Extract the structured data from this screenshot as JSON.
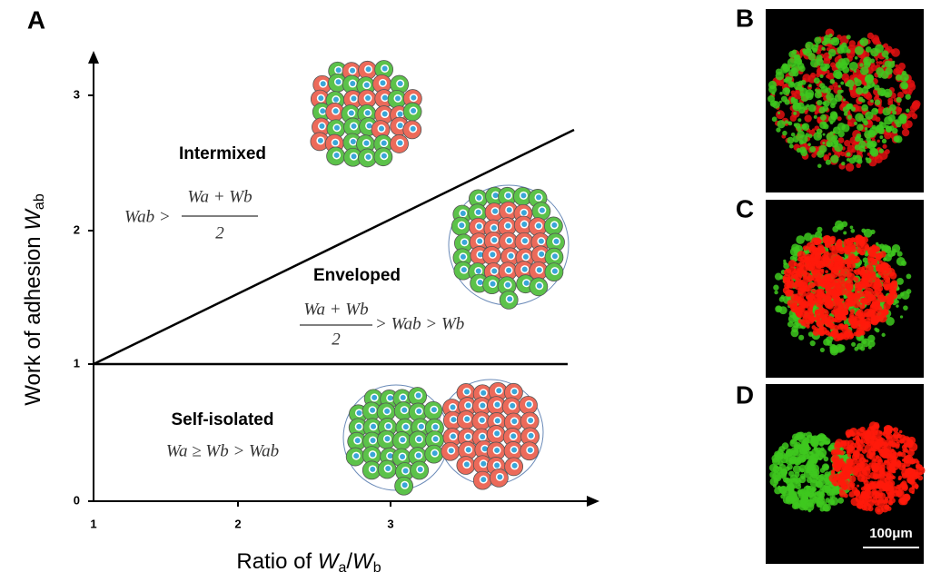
{
  "panel_a": {
    "label": "A",
    "y_axis": {
      "label": "Work of adhesion ",
      "symbol": "W",
      "subscript": "ab",
      "ticks": [
        "0",
        "1",
        "2",
        "3"
      ]
    },
    "x_axis": {
      "label": "Ratio of ",
      "symbol_a": "W",
      "sub_a": "a",
      "slash": "/",
      "symbol_b": "W",
      "sub_b": "b",
      "ticks": [
        "1",
        "2",
        "3"
      ]
    },
    "regions": {
      "intermixed": {
        "name": "Intermixed",
        "lhs": "Wab >",
        "numerator": "Wa + Wb",
        "denominator": "2"
      },
      "enveloped": {
        "name": "Enveloped",
        "numerator": "Wa + Wb",
        "denominator": "2",
        "rhs": "> Wab > Wb"
      },
      "self_isolated": {
        "name": "Self-isolated",
        "condition": "Wa ≥ Wb > Wab"
      }
    }
  },
  "panel_b": {
    "label": "B"
  },
  "panel_c": {
    "label": "C"
  },
  "panel_d": {
    "label": "D",
    "scale_bar": "100μm"
  }
}
